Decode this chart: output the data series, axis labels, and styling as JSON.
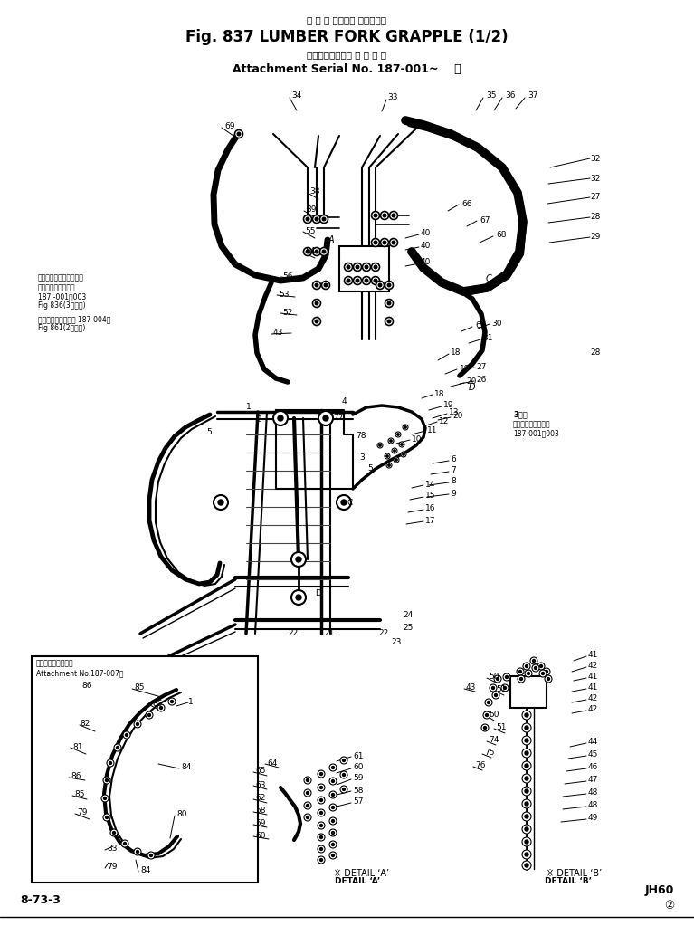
{
  "bg_color": "#ffffff",
  "text_color": "#000000",
  "title1": "ラ ン バ フォーク グラップル",
  "title2": "Fig. 837 LUMBER FORK GRAPPLE (1/2)",
  "sub1": "（アタッチメント 適 用 号 機",
  "sub2": "Attachment Serial No. 187-001~    ）",
  "note1": "適用ハイドリックライン",
  "note2": "アタッチメント番号",
  "note3": "187 -001～003",
  "note4": "Fig 836(3本管用)",
  "note5": "アタッチメント番号 187-004～",
  "note6": "Fig 861(2本管用)",
  "rnote1": "3本管",
  "rnote2": "アタッチメント番号",
  "rnote3": "187-001～003",
  "inset_t1": "アタッチメント番号",
  "inset_t2": "Attachment No.187-007～",
  "det_a": "DETAIL ‘A’",
  "det_a_mark": "※",
  "det_b": "DETAIL ‘B’",
  "det_b_mark": "※",
  "footer_l": "8-73-3",
  "footer_r1": "JH60",
  "footer_r2": "②"
}
